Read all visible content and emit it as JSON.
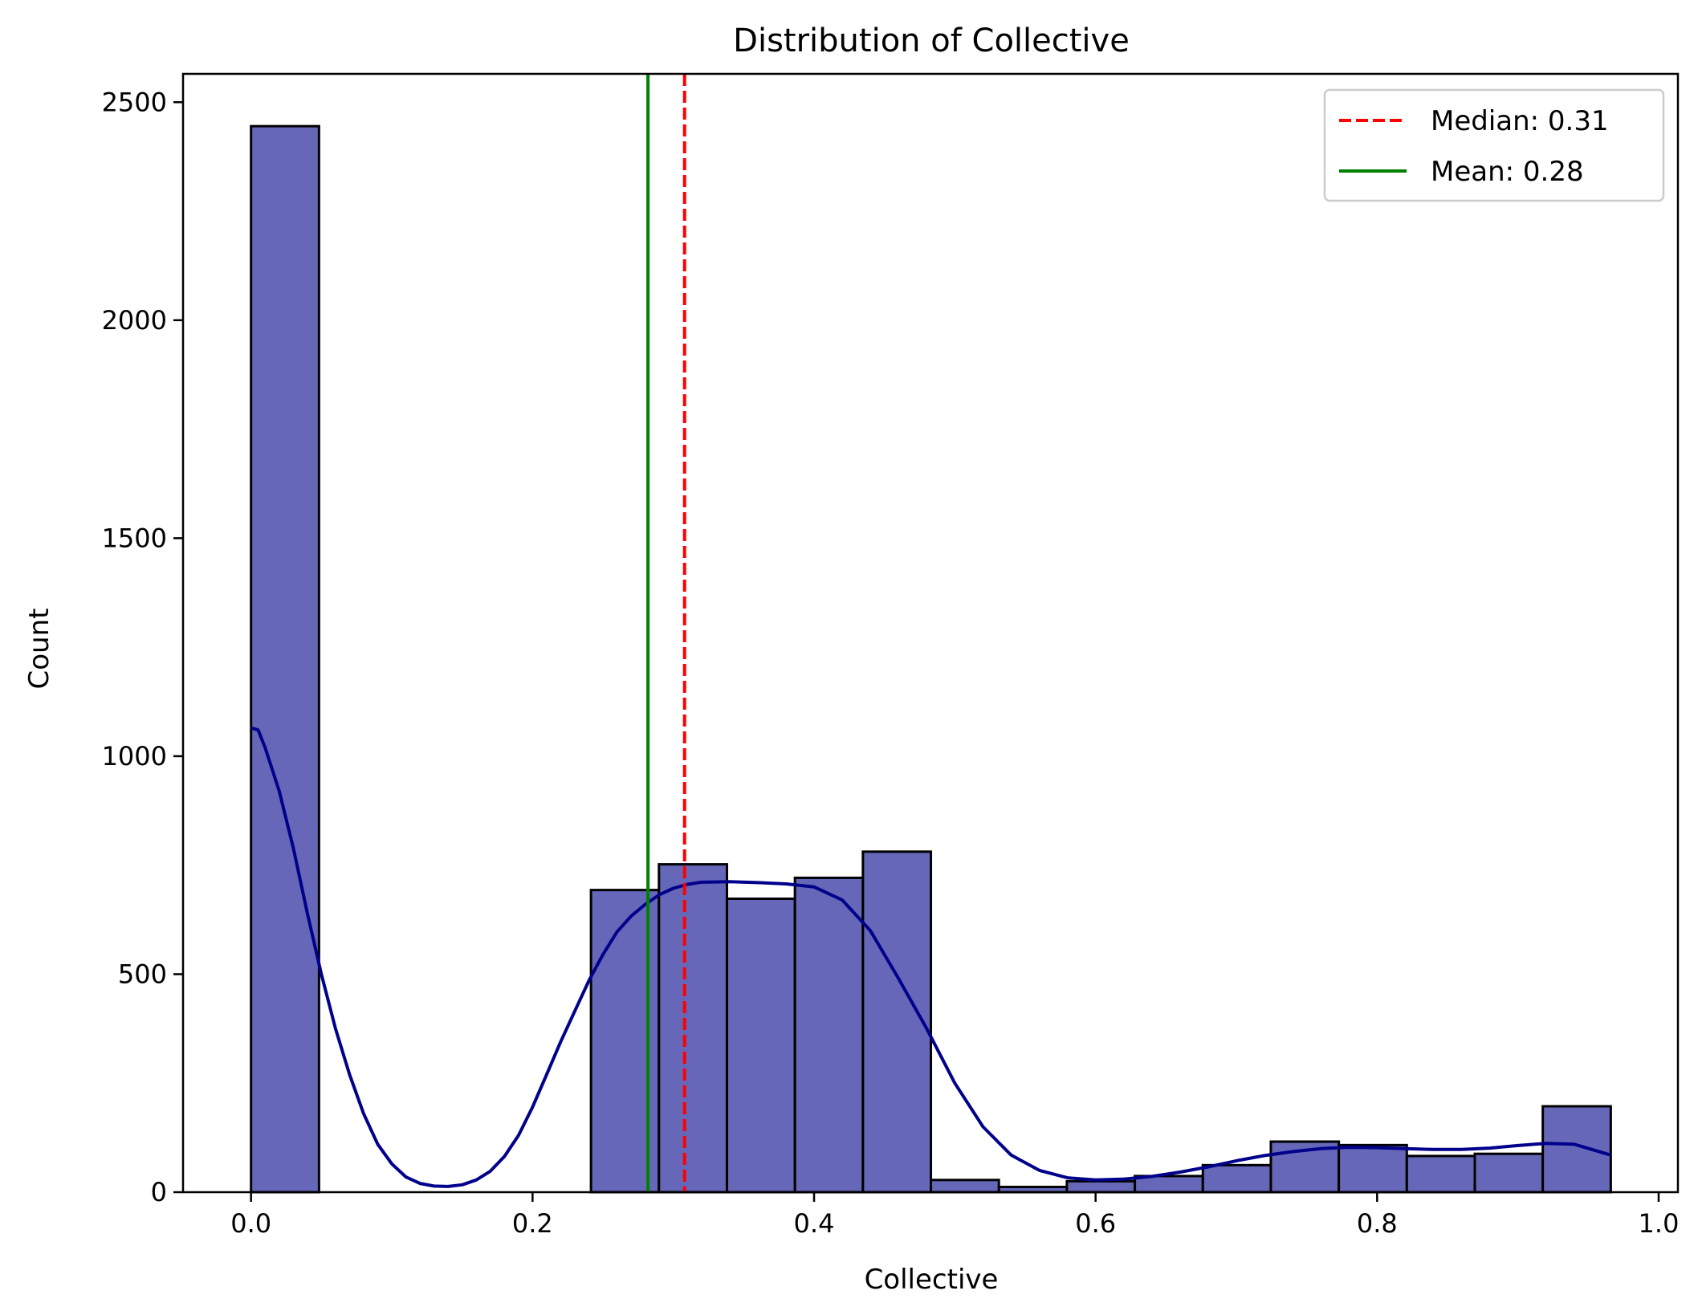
{
  "chart_data": {
    "type": "bar",
    "title": "Distribution of Collective",
    "xlabel": "Collective",
    "ylabel": "Count",
    "xlim": [
      -0.0483,
      1.0137
    ],
    "ylim": [
      0,
      2565
    ],
    "xticks": [
      0.0,
      0.2,
      0.4,
      0.6,
      0.8,
      1.0
    ],
    "xtick_labels": [
      "0.0",
      "0.2",
      "0.4",
      "0.6",
      "0.8",
      "1.0"
    ],
    "yticks": [
      0,
      500,
      1000,
      1500,
      2000,
      2500
    ],
    "ytick_labels": [
      "0",
      "500",
      "1000",
      "1500",
      "2000",
      "2500"
    ],
    "grid": false,
    "legend_position": "top-right",
    "bins": {
      "edges": [
        0.0,
        0.0483,
        0.0966,
        0.1449,
        0.1932,
        0.2415,
        0.2898,
        0.3381,
        0.3864,
        0.4347,
        0.483,
        0.5313,
        0.5796,
        0.6279,
        0.6762,
        0.7245,
        0.7728,
        0.8211,
        0.8694,
        0.9177,
        0.966
      ],
      "counts": [
        2445,
        0,
        0,
        0,
        0,
        693,
        752,
        673,
        721,
        781,
        28,
        12,
        25,
        37,
        62,
        116,
        108,
        83,
        88,
        197
      ]
    },
    "kde": {
      "x": [
        0.0,
        0.005,
        0.01,
        0.02,
        0.03,
        0.04,
        0.05,
        0.06,
        0.07,
        0.08,
        0.09,
        0.1,
        0.11,
        0.12,
        0.13,
        0.14,
        0.15,
        0.16,
        0.17,
        0.18,
        0.19,
        0.2,
        0.21,
        0.22,
        0.23,
        0.24,
        0.25,
        0.26,
        0.27,
        0.28,
        0.29,
        0.3,
        0.31,
        0.32,
        0.34,
        0.36,
        0.38,
        0.4,
        0.42,
        0.44,
        0.46,
        0.48,
        0.5,
        0.52,
        0.54,
        0.56,
        0.58,
        0.6,
        0.62,
        0.64,
        0.66,
        0.68,
        0.7,
        0.72,
        0.74,
        0.76,
        0.78,
        0.8,
        0.82,
        0.84,
        0.86,
        0.88,
        0.9,
        0.92,
        0.94,
        0.966
      ],
      "y": [
        1065,
        1060,
        1020,
        920,
        790,
        640,
        500,
        375,
        270,
        180,
        110,
        65,
        35,
        20,
        14,
        13,
        17,
        28,
        48,
        82,
        130,
        195,
        270,
        345,
        415,
        485,
        545,
        597,
        633,
        660,
        682,
        697,
        706,
        711,
        712,
        710,
        707,
        700,
        670,
        600,
        490,
        375,
        250,
        150,
        85,
        50,
        33,
        28,
        30,
        36,
        46,
        58,
        72,
        84,
        93,
        100,
        103,
        102,
        100,
        98,
        98,
        101,
        107,
        112,
        110,
        85
      ]
    },
    "series": [
      {
        "name": "Median: 0.31",
        "x": 0.308,
        "color": "#ff0000",
        "style": "dashed"
      },
      {
        "name": "Mean: 0.28",
        "x": 0.282,
        "color": "#008000",
        "style": "solid"
      }
    ],
    "colors": {
      "bar_fill": "#6667b9",
      "bar_edge": "#000000",
      "kde_line": "#00008b"
    }
  }
}
